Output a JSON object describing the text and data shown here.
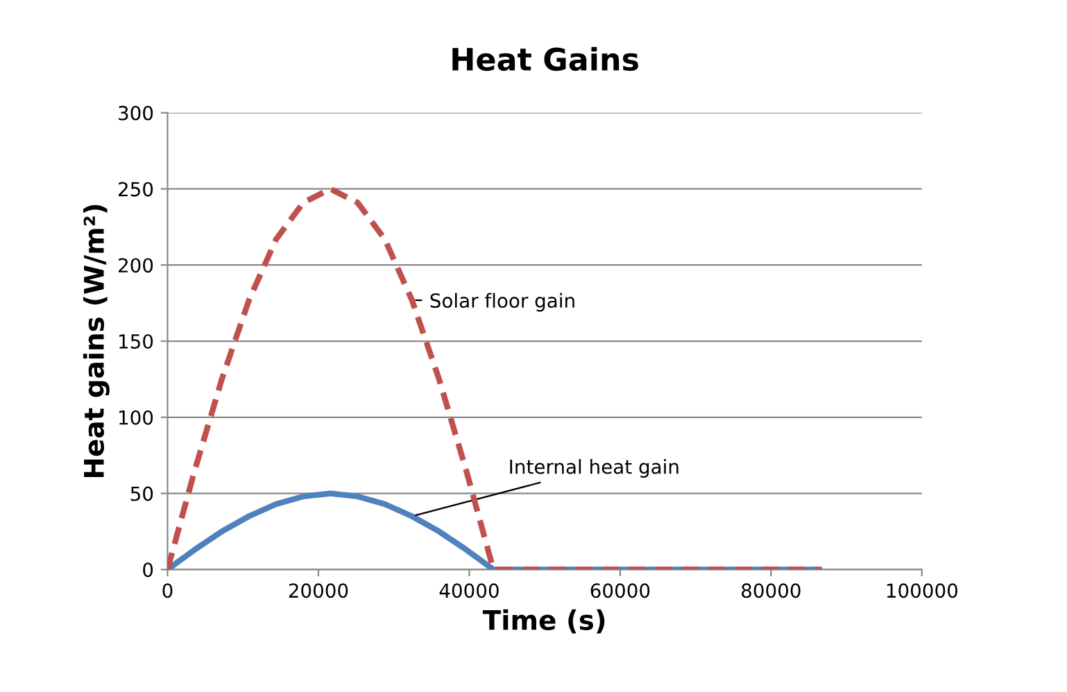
{
  "chart_data": {
    "type": "line",
    "title": "Heat Gains",
    "xlabel": "Time (s)",
    "ylabel": "Heat gains (W/m²)",
    "xlim": [
      0,
      100000
    ],
    "xticks": [
      0,
      20000,
      40000,
      60000,
      80000,
      100000
    ],
    "ylim": [
      0,
      300
    ],
    "yticks": [
      0,
      50,
      100,
      150,
      200,
      250,
      300
    ],
    "grid": "y",
    "marker": "none",
    "x": [
      0,
      3600,
      7200,
      10800,
      14400,
      18000,
      21600,
      25200,
      28800,
      32400,
      36000,
      39600,
      43200,
      46800,
      50400,
      54000,
      57600,
      61200,
      64800,
      68400,
      72000,
      75600,
      79200,
      82800,
      86400
    ],
    "series": [
      {
        "name": "Solar floor gain",
        "color": "#c0504d",
        "line_style": "dashed",
        "values": [
          0,
          65,
          125,
          177,
          217,
          241,
          250,
          241,
          217,
          177,
          125,
          65,
          0,
          0,
          0,
          0,
          0,
          0,
          0,
          0,
          0,
          0,
          0,
          0,
          0
        ]
      },
      {
        "name": "Internal heat gain",
        "color": "#4f81bd",
        "line_style": "solid",
        "values": [
          0,
          13,
          25,
          35,
          43,
          48,
          50,
          48,
          43,
          35,
          25,
          13,
          0,
          0,
          0,
          0,
          0,
          0,
          0,
          0,
          0,
          0,
          0,
          0,
          0
        ]
      }
    ]
  }
}
